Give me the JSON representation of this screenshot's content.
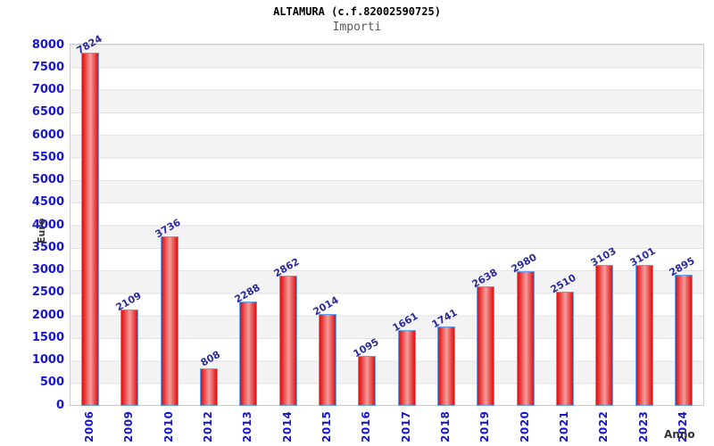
{
  "chart_data": {
    "type": "bar",
    "title": "ALTAMURA (c.f.82002590725)",
    "subtitle": "Importi",
    "xlabel": "Anno",
    "ylabel": "Euro",
    "categories": [
      "2006",
      "2009",
      "2010",
      "2012",
      "2013",
      "2014",
      "2015",
      "2016",
      "2017",
      "2018",
      "2019",
      "2020",
      "2021",
      "2022",
      "2023",
      "2024"
    ],
    "values": [
      7824,
      2109,
      3736,
      808,
      2288,
      2862,
      2014,
      1095,
      1661,
      1741,
      2638,
      2980,
      2510,
      3103,
      3101,
      2895
    ],
    "value_labels": [
      "7824",
      "2109",
      "3736",
      "808",
      "2288",
      "2862",
      "2014",
      "1095",
      "1661",
      "1741",
      "2638",
      "2980",
      "2510",
      "3103",
      "3101",
      "2895"
    ],
    "ylim": [
      0,
      8000
    ],
    "ytick_step": 500,
    "grid": "horizontal-alternating-bands",
    "legend": "none",
    "colors": {
      "bar_fill_edge": "#e01a1a",
      "bar_fill_center": "#f59c9c",
      "bar_border": "#64a0f0",
      "tick_label": "#1717d0",
      "value_label": "#2b2b9d",
      "axis_title": "#333333",
      "band_gray": "#f3f3f3",
      "band_white": "#ffffff",
      "gridline": "#e2e2e2",
      "plot_border": "#cccccc",
      "title": "#000000",
      "subtitle": "#5a5a5a"
    }
  }
}
